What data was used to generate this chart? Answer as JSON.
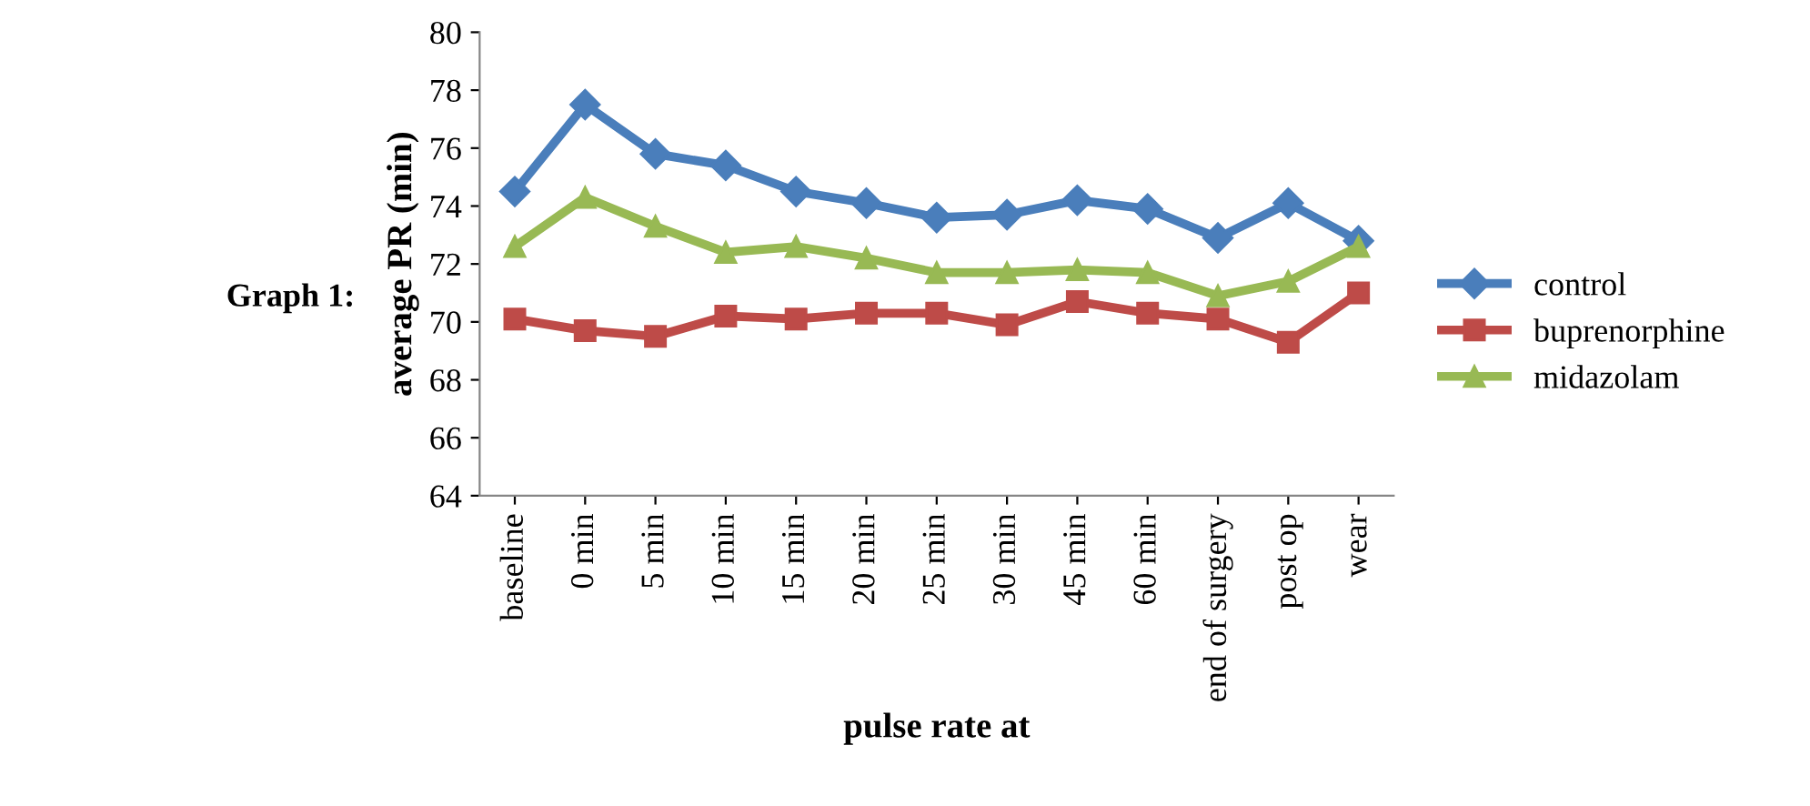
{
  "chart_data": {
    "type": "line",
    "xlabel": "pulse rate at",
    "ylabel": "average PR (min)",
    "annotations": [
      "Graph 1:"
    ],
    "categories": [
      "baseline",
      "0 min",
      "5 min",
      "10 min",
      "15 min",
      "20 min",
      "25 min",
      "30 min",
      "45 min",
      "60 min",
      "end of surgery",
      "post op",
      "wear"
    ],
    "series": [
      {
        "name": "control",
        "color": "#4a7ebb",
        "marker": "diamond",
        "values": [
          74.5,
          77.5,
          75.8,
          75.4,
          74.5,
          74.1,
          73.6,
          73.7,
          74.2,
          73.9,
          72.9,
          74.1,
          72.8
        ]
      },
      {
        "name": "buprenorphine",
        "color": "#be4b48",
        "marker": "square",
        "values": [
          70.1,
          69.7,
          69.5,
          70.2,
          70.1,
          70.3,
          70.3,
          69.9,
          70.7,
          70.3,
          70.1,
          69.3,
          71.0
        ]
      },
      {
        "name": "midazolam",
        "color": "#98b954",
        "marker": "triangle",
        "values": [
          72.6,
          74.3,
          73.3,
          72.4,
          72.6,
          72.2,
          71.7,
          71.7,
          71.8,
          71.7,
          70.9,
          71.4,
          72.6
        ]
      }
    ],
    "ylim": [
      64,
      80
    ],
    "yticks": [
      64,
      66,
      68,
      70,
      72,
      74,
      76,
      78,
      80
    ],
    "grid": false,
    "legend": "right"
  }
}
